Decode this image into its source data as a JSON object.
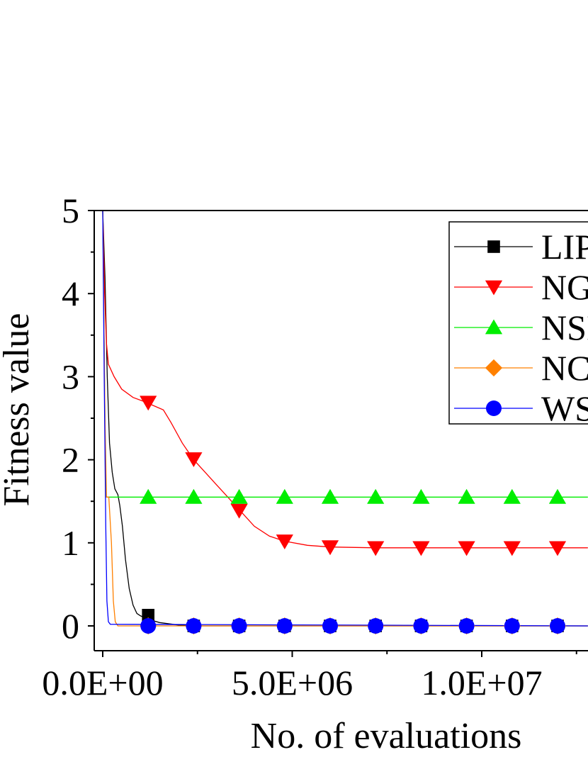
{
  "chart_data": {
    "type": "line",
    "xlabel": "No. of evaluations",
    "ylabel": "Fitness value",
    "xlim": [
      -200000,
      12800000
    ],
    "ylim": [
      -0.3,
      5
    ],
    "x_ticks": [
      {
        "value": 0,
        "label": "0.0E+00"
      },
      {
        "value": 5000000,
        "label": "5.0E+06"
      },
      {
        "value": 10000000,
        "label": "1.0E+07"
      }
    ],
    "y_ticks": [
      {
        "value": 0,
        "label": "0"
      },
      {
        "value": 1,
        "label": "1"
      },
      {
        "value": 2,
        "label": "2"
      },
      {
        "value": 3,
        "label": "3"
      },
      {
        "value": 4,
        "label": "4"
      },
      {
        "value": 5,
        "label": "5"
      }
    ],
    "legend_position": "top-right",
    "series": [
      {
        "name": "LIP",
        "color": "#000000",
        "marker": "square",
        "line": [
          [
            0,
            5
          ],
          [
            60000,
            4.2
          ],
          [
            120000,
            3.0
          ],
          [
            180000,
            2.2
          ],
          [
            250000,
            1.85
          ],
          [
            320000,
            1.65
          ],
          [
            400000,
            1.58
          ],
          [
            450000,
            1.45
          ],
          [
            520000,
            1.2
          ],
          [
            600000,
            0.8
          ],
          [
            700000,
            0.45
          ],
          [
            800000,
            0.25
          ],
          [
            900000,
            0.15
          ],
          [
            1000000,
            0.12
          ],
          [
            1100000,
            0.1
          ],
          [
            1200000,
            0.08
          ],
          [
            1500000,
            0.04
          ],
          [
            2000000,
            0.01
          ],
          [
            2500000,
            0.0
          ],
          [
            12800000,
            0.0
          ]
        ],
        "markers": [
          [
            1200000,
            0.13
          ],
          [
            2400000,
            0
          ],
          [
            3600000,
            0
          ],
          [
            4800000,
            0
          ],
          [
            6000000,
            0
          ],
          [
            7200000,
            0
          ],
          [
            8400000,
            0
          ],
          [
            9600000,
            0
          ],
          [
            10800000,
            0
          ],
          [
            12000000,
            0
          ]
        ]
      },
      {
        "name": "NG",
        "color": "#ff0000",
        "marker": "triangle-down",
        "line": [
          [
            0,
            5
          ],
          [
            50000,
            4.0
          ],
          [
            100000,
            3.4
          ],
          [
            150000,
            3.15
          ],
          [
            300000,
            3.0
          ],
          [
            500000,
            2.85
          ],
          [
            800000,
            2.75
          ],
          [
            1100000,
            2.7
          ],
          [
            1600000,
            2.6
          ],
          [
            1800000,
            2.45
          ],
          [
            2100000,
            2.2
          ],
          [
            2400000,
            2.0
          ],
          [
            2700000,
            1.85
          ],
          [
            3000000,
            1.7
          ],
          [
            3300000,
            1.55
          ],
          [
            3600000,
            1.4
          ],
          [
            4000000,
            1.2
          ],
          [
            4400000,
            1.08
          ],
          [
            4800000,
            1.02
          ],
          [
            5400000,
            0.97
          ],
          [
            6000000,
            0.95
          ],
          [
            7200000,
            0.94
          ],
          [
            12800000,
            0.94
          ]
        ],
        "markers": [
          [
            1200000,
            2.69
          ],
          [
            2400000,
            2.01
          ],
          [
            3600000,
            1.39
          ],
          [
            4800000,
            1.02
          ],
          [
            6000000,
            0.95
          ],
          [
            7200000,
            0.94
          ],
          [
            8400000,
            0.94
          ],
          [
            9600000,
            0.94
          ],
          [
            10800000,
            0.94
          ],
          [
            12000000,
            0.94
          ]
        ]
      },
      {
        "name": "NSI",
        "color": "#00ee00",
        "marker": "triangle-up",
        "line": [
          [
            0,
            5
          ],
          [
            80000,
            1.55
          ],
          [
            12800000,
            1.55
          ]
        ],
        "markers": [
          [
            1200000,
            1.55
          ],
          [
            2400000,
            1.55
          ],
          [
            3600000,
            1.55
          ],
          [
            4800000,
            1.55
          ],
          [
            6000000,
            1.55
          ],
          [
            7200000,
            1.55
          ],
          [
            8400000,
            1.55
          ],
          [
            9600000,
            1.55
          ],
          [
            10800000,
            1.55
          ],
          [
            12000000,
            1.55
          ]
        ]
      },
      {
        "name": "NC",
        "color": "#ff8000",
        "marker": "diamond",
        "line": [
          [
            0,
            5
          ],
          [
            60000,
            2.5
          ],
          [
            100000,
            1.55
          ],
          [
            160000,
            1.55
          ],
          [
            230000,
            1.0
          ],
          [
            280000,
            0.3
          ],
          [
            330000,
            0.05
          ],
          [
            400000,
            0.0
          ],
          [
            12800000,
            0.0
          ]
        ],
        "markers": [
          [
            1200000,
            0
          ],
          [
            2400000,
            0
          ],
          [
            3600000,
            0
          ],
          [
            4800000,
            0
          ],
          [
            6000000,
            0
          ],
          [
            7200000,
            0
          ],
          [
            8400000,
            0
          ],
          [
            9600000,
            0
          ],
          [
            10800000,
            0
          ],
          [
            12000000,
            0
          ]
        ]
      },
      {
        "name": "WS",
        "color": "#0000ff",
        "marker": "circle",
        "line": [
          [
            0,
            5
          ],
          [
            40000,
            3.0
          ],
          [
            80000,
            1.2
          ],
          [
            110000,
            0.3
          ],
          [
            150000,
            0.05
          ],
          [
            200000,
            0.02
          ],
          [
            12800000,
            0.0
          ]
        ],
        "markers": [
          [
            1200000,
            0
          ],
          [
            2400000,
            0
          ],
          [
            3600000,
            0
          ],
          [
            4800000,
            0
          ],
          [
            6000000,
            0
          ],
          [
            7200000,
            0
          ],
          [
            8400000,
            0
          ],
          [
            9600000,
            0
          ],
          [
            10800000,
            0
          ],
          [
            12000000,
            0
          ]
        ]
      }
    ]
  }
}
